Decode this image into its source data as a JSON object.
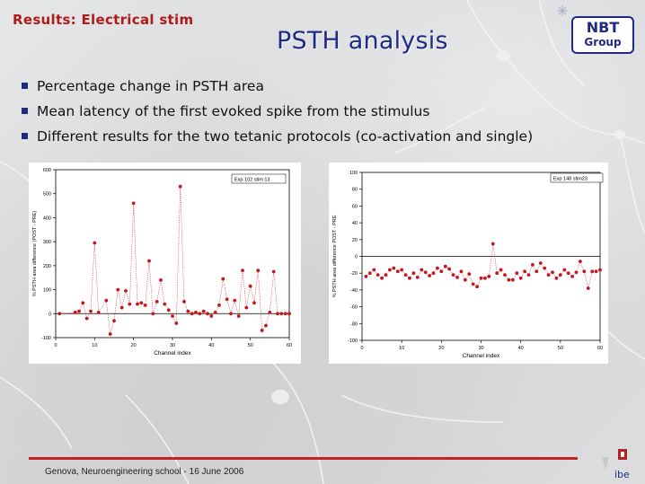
{
  "slide": {
    "section_title": "Results: Electrical stim",
    "title": "PSTH analysis",
    "logo": {
      "line1": "NBT",
      "line2": "Group"
    },
    "corner_logo": {
      "text": "ibe"
    },
    "footer": "Genova, Neuroengineering school - 16 June 2006",
    "bullets": [
      "Percentage change in PSTH area",
      "Mean latency of the first evoked spike from the stimulus",
      "Different results for the two tetanic protocols (co-activation and single)"
    ],
    "colors": {
      "title": "#1f2b83",
      "section": "#b11a1a",
      "accent_line": "#c42121",
      "point": "#c8151b"
    }
  },
  "chart_data": [
    {
      "type": "scatter",
      "legend": "Exp 102 stim 13",
      "xlabel": "Channel index",
      "ylabel": "% PSTH area difference (POST - PRE)",
      "xlim": [
        0,
        60
      ],
      "ylim": [
        -100,
        600
      ],
      "xticks": [
        0,
        10,
        20,
        30,
        40,
        50,
        60
      ],
      "yticks": [
        -100,
        0,
        100,
        200,
        300,
        400,
        500,
        600
      ],
      "baseline": 0,
      "x": [
        1,
        5,
        6,
        7,
        8,
        9,
        10,
        11,
        13,
        14,
        15,
        16,
        17,
        18,
        19,
        20,
        21,
        22,
        23,
        24,
        25,
        26,
        27,
        28,
        29,
        30,
        31,
        32,
        33,
        34,
        35,
        36,
        37,
        38,
        39,
        40,
        41,
        42,
        43,
        44,
        45,
        46,
        47,
        48,
        49,
        50,
        51,
        52,
        53,
        54,
        55,
        56,
        57,
        58,
        59,
        60
      ],
      "y": [
        0,
        5,
        10,
        45,
        -20,
        10,
        295,
        5,
        55,
        -85,
        -30,
        100,
        25,
        95,
        40,
        460,
        40,
        45,
        35,
        220,
        0,
        50,
        140,
        40,
        15,
        -10,
        -40,
        530,
        50,
        10,
        0,
        5,
        0,
        10,
        0,
        -10,
        5,
        35,
        145,
        60,
        0,
        55,
        -10,
        180,
        25,
        115,
        45,
        180,
        -70,
        -50,
        5,
        175,
        0,
        0,
        0,
        0
      ]
    },
    {
      "type": "scatter",
      "legend": "Exp 148 stim23",
      "xlabel": "Channel index",
      "ylabel": "% PSTH area difference POST - PRE",
      "xlim": [
        0,
        60
      ],
      "ylim": [
        -100,
        100
      ],
      "xticks": [
        0,
        10,
        20,
        30,
        40,
        50,
        60
      ],
      "yticks": [
        -100,
        -80,
        -60,
        -40,
        -20,
        0,
        20,
        40,
        60,
        80,
        100
      ],
      "baseline": 0,
      "x": [
        1,
        2,
        3,
        4,
        5,
        6,
        7,
        8,
        9,
        10,
        11,
        12,
        13,
        14,
        15,
        16,
        17,
        18,
        19,
        20,
        21,
        22,
        23,
        24,
        25,
        26,
        27,
        28,
        29,
        30,
        31,
        32,
        33,
        34,
        35,
        36,
        37,
        38,
        39,
        40,
        41,
        42,
        43,
        44,
        45,
        46,
        47,
        48,
        49,
        50,
        51,
        52,
        53,
        54,
        55,
        56,
        57,
        58,
        59,
        60
      ],
      "y": [
        -24,
        -20,
        -16,
        -22,
        -26,
        -22,
        -16,
        -14,
        -18,
        -16,
        -22,
        -26,
        -20,
        -25,
        -16,
        -19,
        -23,
        -20,
        -14,
        -18,
        -12,
        -15,
        -22,
        -25,
        -18,
        -28,
        -21,
        -33,
        -36,
        -26,
        -26,
        -24,
        15,
        -20,
        -16,
        -22,
        -28,
        -28,
        -20,
        -26,
        -18,
        -22,
        -10,
        -18,
        -8,
        -14,
        -22,
        -19,
        -26,
        -22,
        -16,
        -20,
        -24,
        -19,
        -6,
        -18,
        -38,
        -18,
        -18,
        -16
      ]
    }
  ]
}
